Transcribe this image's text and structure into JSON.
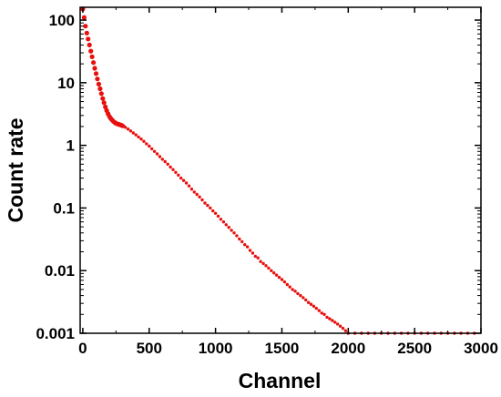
{
  "chart_data": {
    "type": "scatter",
    "title": "",
    "xlabel": "Channel",
    "ylabel": "Count rate",
    "xlim": [
      -20,
      3000
    ],
    "ylim": [
      0.001,
      160
    ],
    "yscale": "log",
    "x_ticks": [
      0,
      500,
      1000,
      1500,
      2000,
      2500,
      3000
    ],
    "y_ticks": [
      0.001,
      0.01,
      0.1,
      1,
      10,
      100
    ],
    "y_tick_labels": [
      "0.001",
      "0.01",
      "0.1",
      "1",
      "10",
      "100"
    ],
    "grid": false,
    "legend": "none",
    "marker_color": "#e8100e",
    "series": [
      {
        "x": [
          0,
          10,
          20,
          30,
          40,
          50,
          60,
          70,
          80,
          90,
          100,
          110,
          120,
          130,
          140,
          150,
          160,
          170,
          180,
          190,
          200,
          210,
          220,
          230,
          240,
          250,
          260,
          270,
          280,
          290,
          300,
          320,
          340,
          360,
          380,
          400,
          420,
          440,
          460,
          480,
          500,
          520,
          540,
          560,
          580,
          600,
          620,
          640,
          660,
          680,
          700,
          720,
          740,
          760,
          780,
          800,
          820,
          840,
          860,
          880,
          900,
          920,
          940,
          960,
          980,
          1000,
          1020,
          1040,
          1060,
          1080,
          1100,
          1120,
          1140,
          1160,
          1180,
          1200,
          1220,
          1240,
          1260,
          1280,
          1300,
          1320,
          1340,
          1360,
          1380,
          1400,
          1420,
          1440,
          1460,
          1480,
          1500,
          1520,
          1540,
          1560,
          1580,
          1600,
          1620,
          1640,
          1660,
          1680,
          1700,
          1720,
          1740,
          1760,
          1780,
          1800,
          1820,
          1840,
          1860,
          1880,
          1900,
          1920,
          1940,
          1960,
          1980,
          2000,
          2050,
          2100,
          2150,
          2200,
          2250,
          2300,
          2350,
          2400,
          2450,
          2500,
          2550,
          2600,
          2650,
          2700,
          2750,
          2800,
          2850,
          2900,
          2950
        ],
        "y": [
          150,
          110,
          80,
          62,
          50,
          40,
          32,
          26,
          21,
          17,
          14,
          11.5,
          9.5,
          8,
          6.7,
          5.6,
          4.8,
          4.1,
          3.6,
          3.2,
          2.9,
          2.7,
          2.55,
          2.42,
          2.32,
          2.25,
          2.2,
          2.17,
          2.13,
          2.1,
          2.05,
          1.95,
          1.82,
          1.7,
          1.58,
          1.47,
          1.36,
          1.26,
          1.16,
          1.06,
          0.97,
          0.88,
          0.8,
          0.73,
          0.66,
          0.6,
          0.55,
          0.5,
          0.45,
          0.41,
          0.37,
          0.335,
          0.3,
          0.275,
          0.25,
          0.225,
          0.2,
          0.18,
          0.165,
          0.15,
          0.135,
          0.12,
          0.11,
          0.1,
          0.09,
          0.082,
          0.074,
          0.066,
          0.06,
          0.054,
          0.049,
          0.044,
          0.04,
          0.036,
          0.032,
          0.029,
          0.026,
          0.024,
          0.021,
          0.019,
          0.017,
          0.016,
          0.014,
          0.013,
          0.012,
          0.011,
          0.01,
          0.0092,
          0.0085,
          0.0078,
          0.0072,
          0.0066,
          0.006,
          0.0055,
          0.005,
          0.0047,
          0.0043,
          0.004,
          0.0037,
          0.0034,
          0.0031,
          0.0029,
          0.0027,
          0.0025,
          0.0023,
          0.0021,
          0.002,
          0.0018,
          0.0017,
          0.0016,
          0.0015,
          0.0014,
          0.0013,
          0.0012,
          0.0011,
          0.001,
          0.001,
          0.001,
          0.001,
          0.001,
          0.001,
          0.001,
          0.001,
          0.001,
          0.001,
          0.001,
          0.001,
          0.001,
          0.001,
          0.001,
          0.001,
          0.001,
          0.001,
          0.001,
          0.001
        ]
      }
    ]
  }
}
